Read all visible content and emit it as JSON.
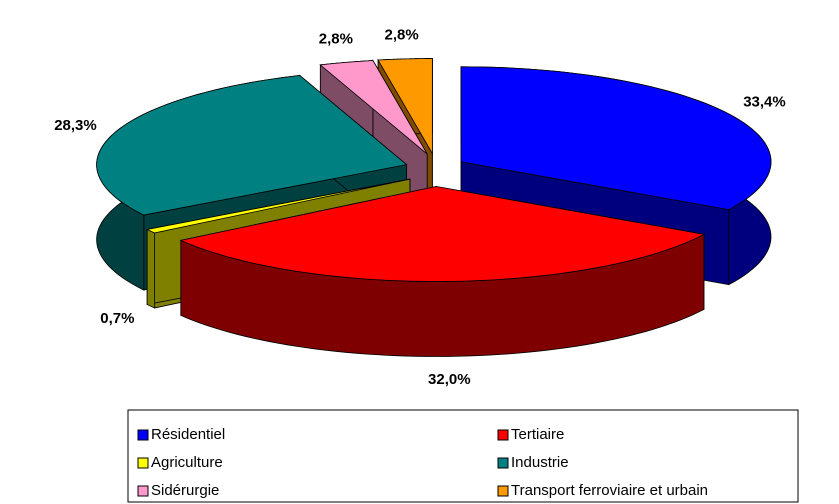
{
  "chart_data": {
    "type": "pie",
    "categories": [
      "Résidentiel",
      "Tertiaire",
      "Agriculture",
      "Industrie",
      "Sidérurgie",
      "Transport ferroviaire et urbain"
    ],
    "values": [
      33.4,
      32.0,
      0.7,
      28.3,
      2.8,
      2.8
    ],
    "value_labels": [
      "33,4%",
      "32,0%",
      "0,7%",
      "28,3%",
      "2,8%",
      "2,8%"
    ],
    "colors": [
      "#0000ff",
      "#ff0000",
      "#ffff00",
      "#008080",
      "#ff99cc",
      "#ff9900"
    ],
    "legend": "bottom"
  }
}
